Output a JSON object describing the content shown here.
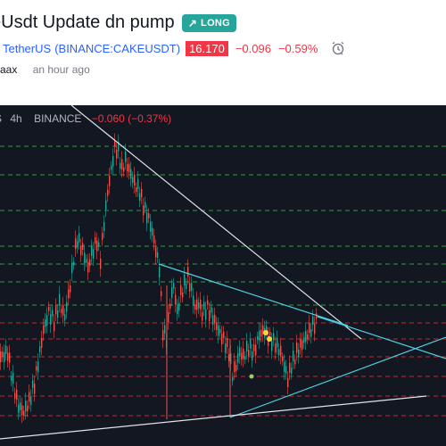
{
  "header": {
    "title": "eUsdt Update dn pump",
    "badge_label": "LONG",
    "symbol_name": "/ TetherUS",
    "symbol_code": "(BINANCE:CAKEUSDT)",
    "price": "16.170",
    "change_abs": "−0.096",
    "change_pct": "−0.59%",
    "author": "raax",
    "posted": "an hour ago"
  },
  "legend": {
    "symbol_tail": "S",
    "timeframe": "4h",
    "exchange": "BINANCE",
    "change": "−0.060 (−0.37%)"
  },
  "colors": {
    "up": "#26a69a",
    "down": "#ef5350",
    "background": "#131722",
    "accent": "#2962ff"
  },
  "icons": [
    "trend-up-icon",
    "alarm-clock-icon"
  ]
}
